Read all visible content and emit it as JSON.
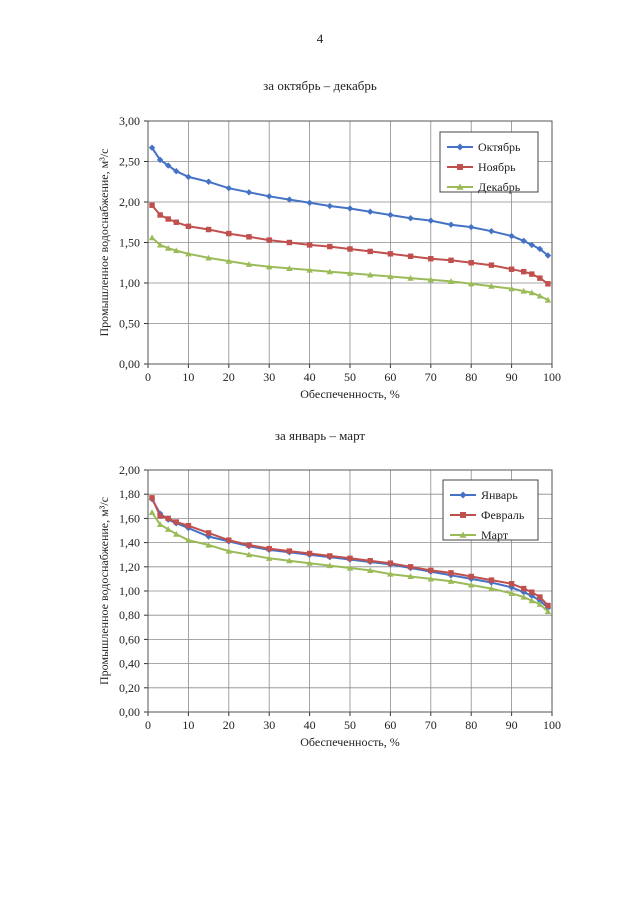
{
  "page_number": "4",
  "chart_data": [
    {
      "type": "line",
      "title": "за октябрь – декабрь",
      "xlabel": "Обеспеченность, %",
      "ylabel": "Промышленное водоснабжение, м³/с",
      "xlim": [
        0,
        100
      ],
      "ylim": [
        0,
        3
      ],
      "xticks": [
        0,
        10,
        20,
        30,
        40,
        50,
        60,
        70,
        80,
        90,
        100
      ],
      "yticks": [
        "0,00",
        "0,50",
        "1,00",
        "1,50",
        "2,00",
        "2,50",
        "3,00"
      ],
      "grid": true,
      "legend_position": "top-right",
      "series": [
        {
          "name": "Октябрь",
          "color": "#4472c4",
          "marker": "diamond",
          "points": [
            [
              1,
              2.67
            ],
            [
              3,
              2.52
            ],
            [
              5,
              2.45
            ],
            [
              7,
              2.38
            ],
            [
              10,
              2.31
            ],
            [
              15,
              2.25
            ],
            [
              20,
              2.17
            ],
            [
              25,
              2.12
            ],
            [
              30,
              2.07
            ],
            [
              35,
              2.03
            ],
            [
              40,
              1.99
            ],
            [
              45,
              1.95
            ],
            [
              50,
              1.92
            ],
            [
              55,
              1.88
            ],
            [
              60,
              1.84
            ],
            [
              65,
              1.8
            ],
            [
              70,
              1.77
            ],
            [
              75,
              1.72
            ],
            [
              80,
              1.69
            ],
            [
              85,
              1.64
            ],
            [
              90,
              1.58
            ],
            [
              93,
              1.52
            ],
            [
              95,
              1.47
            ],
            [
              97,
              1.42
            ],
            [
              99,
              1.34
            ]
          ]
        },
        {
          "name": "Ноябрь",
          "color": "#c0504d",
          "marker": "square",
          "points": [
            [
              1,
              1.96
            ],
            [
              3,
              1.84
            ],
            [
              5,
              1.79
            ],
            [
              7,
              1.75
            ],
            [
              10,
              1.7
            ],
            [
              15,
              1.66
            ],
            [
              20,
              1.61
            ],
            [
              25,
              1.57
            ],
            [
              30,
              1.53
            ],
            [
              35,
              1.5
            ],
            [
              40,
              1.47
            ],
            [
              45,
              1.45
            ],
            [
              50,
              1.42
            ],
            [
              55,
              1.39
            ],
            [
              60,
              1.36
            ],
            [
              65,
              1.33
            ],
            [
              70,
              1.3
            ],
            [
              75,
              1.28
            ],
            [
              80,
              1.25
            ],
            [
              85,
              1.22
            ],
            [
              90,
              1.17
            ],
            [
              93,
              1.14
            ],
            [
              95,
              1.11
            ],
            [
              97,
              1.06
            ],
            [
              99,
              0.99
            ]
          ]
        },
        {
          "name": "Декабрь",
          "color": "#9bbb59",
          "marker": "triangle",
          "points": [
            [
              1,
              1.56
            ],
            [
              3,
              1.47
            ],
            [
              5,
              1.43
            ],
            [
              7,
              1.4
            ],
            [
              10,
              1.36
            ],
            [
              15,
              1.31
            ],
            [
              20,
              1.27
            ],
            [
              25,
              1.23
            ],
            [
              30,
              1.2
            ],
            [
              35,
              1.18
            ],
            [
              40,
              1.16
            ],
            [
              45,
              1.14
            ],
            [
              50,
              1.12
            ],
            [
              55,
              1.1
            ],
            [
              60,
              1.08
            ],
            [
              65,
              1.06
            ],
            [
              70,
              1.04
            ],
            [
              75,
              1.02
            ],
            [
              80,
              0.99
            ],
            [
              85,
              0.96
            ],
            [
              90,
              0.93
            ],
            [
              93,
              0.9
            ],
            [
              95,
              0.88
            ],
            [
              97,
              0.84
            ],
            [
              99,
              0.79
            ]
          ]
        }
      ]
    },
    {
      "type": "line",
      "title": "за январь – март",
      "xlabel": "Обеспеченность, %",
      "ylabel": "Промышленное водоснабжение, м³/с",
      "xlim": [
        0,
        100
      ],
      "ylim": [
        0,
        2
      ],
      "xticks": [
        0,
        10,
        20,
        30,
        40,
        50,
        60,
        70,
        80,
        90,
        100
      ],
      "yticks": [
        "0,00",
        "0,20",
        "0,40",
        "0,60",
        "0,80",
        "1,00",
        "1,20",
        "1,40",
        "1,60",
        "1,80",
        "2,00"
      ],
      "grid": true,
      "legend_position": "top-right",
      "series": [
        {
          "name": "Январь",
          "color": "#4472c4",
          "marker": "diamond",
          "points": [
            [
              1,
              1.76
            ],
            [
              3,
              1.64
            ],
            [
              5,
              1.59
            ],
            [
              7,
              1.56
            ],
            [
              10,
              1.52
            ],
            [
              15,
              1.45
            ],
            [
              20,
              1.41
            ],
            [
              25,
              1.37
            ],
            [
              30,
              1.34
            ],
            [
              35,
              1.32
            ],
            [
              40,
              1.3
            ],
            [
              45,
              1.28
            ],
            [
              50,
              1.26
            ],
            [
              55,
              1.24
            ],
            [
              60,
              1.22
            ],
            [
              65,
              1.19
            ],
            [
              70,
              1.16
            ],
            [
              75,
              1.13
            ],
            [
              80,
              1.1
            ],
            [
              85,
              1.07
            ],
            [
              90,
              1.03
            ],
            [
              93,
              0.99
            ],
            [
              95,
              0.96
            ],
            [
              97,
              0.92
            ],
            [
              99,
              0.86
            ]
          ]
        },
        {
          "name": "Февраль",
          "color": "#c0504d",
          "marker": "square",
          "points": [
            [
              1,
              1.77
            ],
            [
              3,
              1.62
            ],
            [
              5,
              1.6
            ],
            [
              7,
              1.57
            ],
            [
              10,
              1.54
            ],
            [
              15,
              1.48
            ],
            [
              20,
              1.42
            ],
            [
              25,
              1.38
            ],
            [
              30,
              1.35
            ],
            [
              35,
              1.33
            ],
            [
              40,
              1.31
            ],
            [
              45,
              1.29
            ],
            [
              50,
              1.27
            ],
            [
              55,
              1.25
            ],
            [
              60,
              1.23
            ],
            [
              65,
              1.2
            ],
            [
              70,
              1.17
            ],
            [
              75,
              1.15
            ],
            [
              80,
              1.12
            ],
            [
              85,
              1.09
            ],
            [
              90,
              1.06
            ],
            [
              93,
              1.02
            ],
            [
              95,
              0.99
            ],
            [
              97,
              0.95
            ],
            [
              99,
              0.88
            ]
          ]
        },
        {
          "name": "Март",
          "color": "#9bbb59",
          "marker": "triangle",
          "points": [
            [
              1,
              1.65
            ],
            [
              3,
              1.55
            ],
            [
              5,
              1.51
            ],
            [
              7,
              1.47
            ],
            [
              10,
              1.42
            ],
            [
              15,
              1.38
            ],
            [
              20,
              1.33
            ],
            [
              25,
              1.3
            ],
            [
              30,
              1.27
            ],
            [
              35,
              1.25
            ],
            [
              40,
              1.23
            ],
            [
              45,
              1.21
            ],
            [
              50,
              1.19
            ],
            [
              55,
              1.17
            ],
            [
              60,
              1.14
            ],
            [
              65,
              1.12
            ],
            [
              70,
              1.1
            ],
            [
              75,
              1.08
            ],
            [
              80,
              1.05
            ],
            [
              85,
              1.02
            ],
            [
              90,
              0.98
            ],
            [
              93,
              0.95
            ],
            [
              95,
              0.92
            ],
            [
              97,
              0.89
            ],
            [
              99,
              0.83
            ]
          ]
        }
      ]
    }
  ]
}
